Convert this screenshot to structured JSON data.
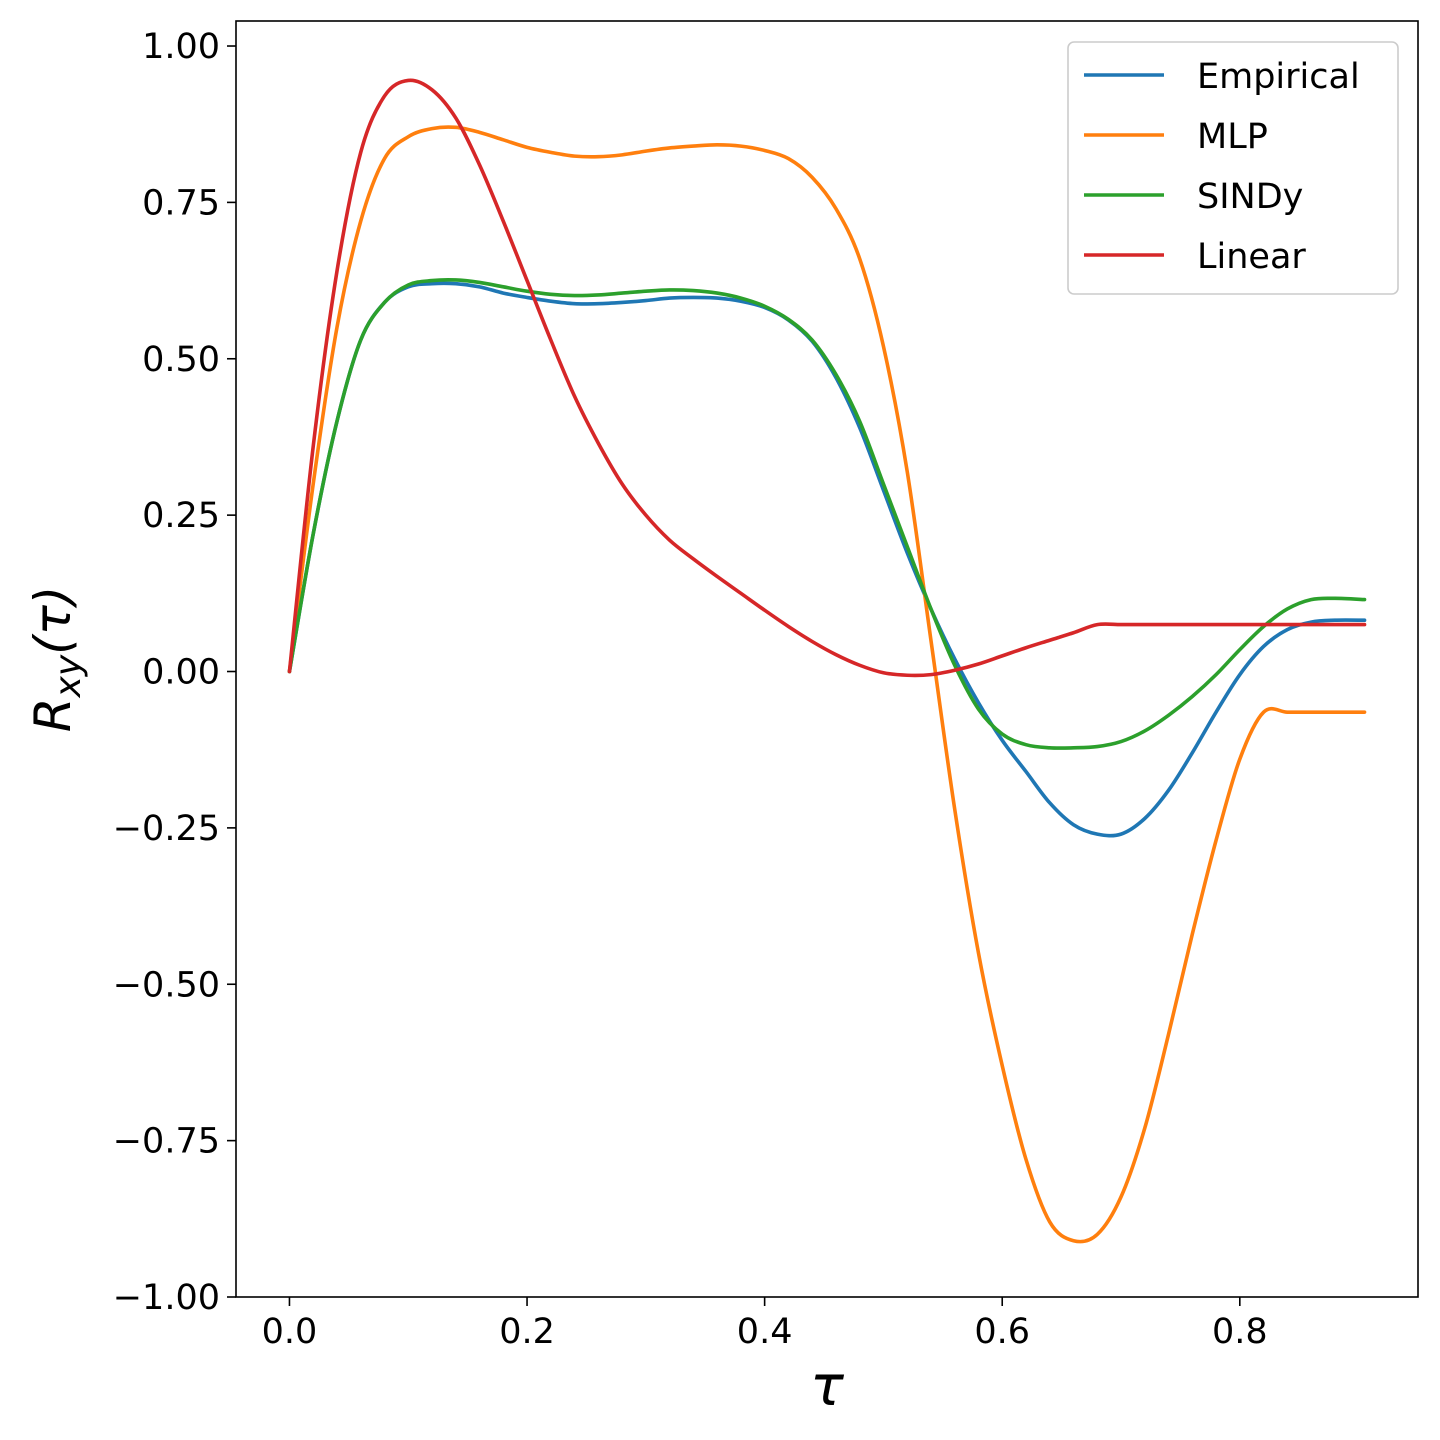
{
  "chart_data": {
    "type": "line",
    "title": "",
    "xlabel": "τ",
    "ylabel_main": "R",
    "ylabel_sub": "xy",
    "ylabel_arg": "(τ)",
    "xlim": [
      -0.045,
      0.95
    ],
    "ylim": [
      -1.0,
      1.04
    ],
    "grid": false,
    "legend_position": "top-right",
    "x_ticks": [
      0.0,
      0.2,
      0.4,
      0.6,
      0.8
    ],
    "x_tick_labels": [
      "0.0",
      "0.2",
      "0.4",
      "0.6",
      "0.8"
    ],
    "y_ticks": [
      1.0,
      0.75,
      0.5,
      0.25,
      0.0,
      -0.25,
      -0.5,
      -0.75,
      -1.0
    ],
    "y_tick_labels": [
      "1.00",
      "0.75",
      "0.50",
      "0.25",
      "0.00",
      "−0.25",
      "−0.50",
      "−0.75",
      "−1.00"
    ],
    "x": [
      0.0,
      0.02,
      0.04,
      0.06,
      0.08,
      0.1,
      0.12,
      0.14,
      0.16,
      0.18,
      0.2,
      0.22,
      0.24,
      0.26,
      0.28,
      0.3,
      0.32,
      0.34,
      0.36,
      0.38,
      0.4,
      0.42,
      0.44,
      0.46,
      0.48,
      0.5,
      0.52,
      0.54,
      0.56,
      0.58,
      0.6,
      0.62,
      0.64,
      0.66,
      0.68,
      0.7,
      0.72,
      0.74,
      0.76,
      0.78,
      0.8,
      0.82,
      0.84,
      0.86,
      0.88,
      0.905
    ],
    "series": [
      {
        "name": "Empirical",
        "color": "#1f77b4",
        "values": [
          0.0,
          0.22,
          0.4,
          0.53,
          0.59,
          0.615,
          0.62,
          0.62,
          0.615,
          0.605,
          0.598,
          0.592,
          0.588,
          0.588,
          0.59,
          0.593,
          0.597,
          0.598,
          0.597,
          0.592,
          0.582,
          0.562,
          0.528,
          0.47,
          0.39,
          0.29,
          0.19,
          0.1,
          0.02,
          -0.05,
          -0.11,
          -0.16,
          -0.21,
          -0.245,
          -0.26,
          -0.26,
          -0.235,
          -0.19,
          -0.13,
          -0.065,
          -0.005,
          0.04,
          0.067,
          0.079,
          0.082,
          0.082
        ]
      },
      {
        "name": "MLP",
        "color": "#ff7f0e",
        "values": [
          0.0,
          0.3,
          0.55,
          0.72,
          0.82,
          0.855,
          0.868,
          0.87,
          0.862,
          0.85,
          0.838,
          0.83,
          0.824,
          0.823,
          0.826,
          0.832,
          0.837,
          0.84,
          0.842,
          0.84,
          0.833,
          0.82,
          0.79,
          0.74,
          0.66,
          0.52,
          0.32,
          0.05,
          -0.22,
          -0.45,
          -0.63,
          -0.78,
          -0.88,
          -0.91,
          -0.9,
          -0.84,
          -0.73,
          -0.58,
          -0.42,
          -0.27,
          -0.14,
          -0.065,
          -0.065,
          -0.065,
          -0.065,
          -0.065
        ]
      },
      {
        "name": "SINDy",
        "color": "#2ca02c",
        "values": [
          0.0,
          0.22,
          0.4,
          0.53,
          0.59,
          0.618,
          0.625,
          0.626,
          0.622,
          0.615,
          0.608,
          0.603,
          0.601,
          0.602,
          0.605,
          0.608,
          0.61,
          0.609,
          0.605,
          0.597,
          0.584,
          0.563,
          0.53,
          0.475,
          0.4,
          0.3,
          0.2,
          0.1,
          0.01,
          -0.06,
          -0.1,
          -0.117,
          -0.122,
          -0.122,
          -0.12,
          -0.112,
          -0.095,
          -0.07,
          -0.04,
          -0.005,
          0.035,
          0.072,
          0.1,
          0.115,
          0.117,
          0.115
        ]
      },
      {
        "name": "Linear",
        "color": "#d62728",
        "values": [
          0.0,
          0.36,
          0.64,
          0.83,
          0.92,
          0.945,
          0.93,
          0.885,
          0.81,
          0.72,
          0.625,
          0.53,
          0.44,
          0.365,
          0.3,
          0.25,
          0.21,
          0.18,
          0.152,
          0.125,
          0.098,
          0.072,
          0.048,
          0.027,
          0.01,
          -0.002,
          -0.006,
          -0.005,
          0.002,
          0.012,
          0.025,
          0.038,
          0.05,
          0.062,
          0.075,
          0.075,
          0.075,
          0.075,
          0.075,
          0.075,
          0.075,
          0.075,
          0.075,
          0.075,
          0.075,
          0.075
        ]
      }
    ]
  }
}
